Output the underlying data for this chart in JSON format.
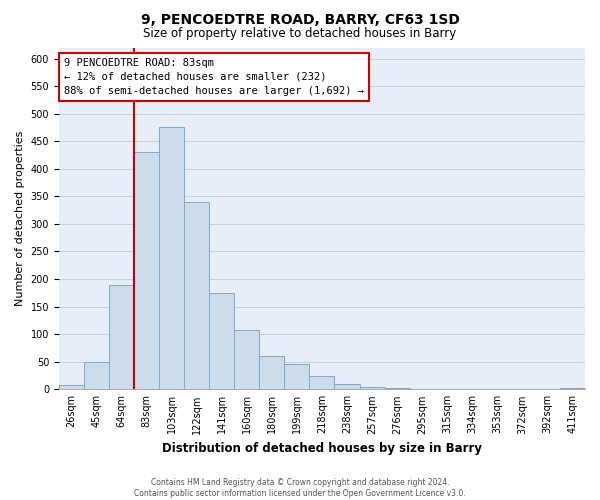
{
  "title": "9, PENCOEDTRE ROAD, BARRY, CF63 1SD",
  "subtitle": "Size of property relative to detached houses in Barry",
  "xlabel": "Distribution of detached houses by size in Barry",
  "ylabel": "Number of detached properties",
  "bar_labels": [
    "26sqm",
    "45sqm",
    "64sqm",
    "83sqm",
    "103sqm",
    "122sqm",
    "141sqm",
    "160sqm",
    "180sqm",
    "199sqm",
    "218sqm",
    "238sqm",
    "257sqm",
    "276sqm",
    "295sqm",
    "315sqm",
    "334sqm",
    "353sqm",
    "372sqm",
    "392sqm",
    "411sqm"
  ],
  "bar_values": [
    8,
    50,
    190,
    430,
    475,
    340,
    175,
    108,
    60,
    45,
    25,
    10,
    5,
    3,
    1,
    1,
    0,
    0,
    1,
    0,
    3
  ],
  "bar_color": "#cddcec",
  "bar_edge_color": "#7aaad0",
  "highlight_index": 3,
  "highlight_line_color": "#cc0000",
  "annotation_line1": "9 PENCOEDTRE ROAD: 83sqm",
  "annotation_line2": "← 12% of detached houses are smaller (232)",
  "annotation_line3": "88% of semi-detached houses are larger (1,692) →",
  "annotation_box_color": "#ffffff",
  "annotation_box_edge_color": "#cc0000",
  "ylim": [
    0,
    620
  ],
  "yticks": [
    0,
    50,
    100,
    150,
    200,
    250,
    300,
    350,
    400,
    450,
    500,
    550,
    600
  ],
  "footer_line1": "Contains HM Land Registry data © Crown copyright and database right 2024.",
  "footer_line2": "Contains public sector information licensed under the Open Government Licence v3.0.",
  "background_color": "#ffffff",
  "plot_bg_color": "#e8eef8",
  "grid_color": "#c8d0e0",
  "title_fontsize": 10,
  "subtitle_fontsize": 8.5,
  "ylabel_fontsize": 8,
  "xlabel_fontsize": 8.5,
  "tick_fontsize": 7,
  "annotation_fontsize": 7.5
}
